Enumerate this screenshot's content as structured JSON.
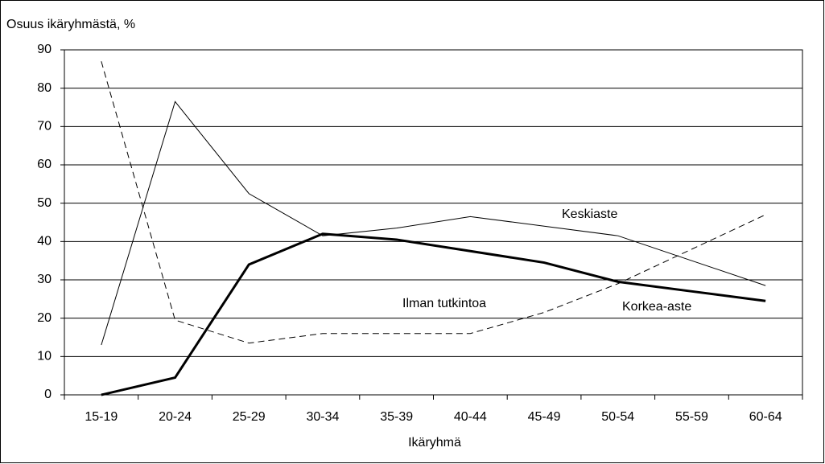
{
  "chart_data": {
    "type": "line",
    "y_axis_label": "Osuus ikäryhmästä, %",
    "x_axis_label": "Ikäryhmä",
    "categories": [
      "15-19",
      "20-24",
      "25-29",
      "30-34",
      "35-39",
      "40-44",
      "45-49",
      "50-54",
      "55-59",
      "60-64"
    ],
    "series": [
      {
        "name": "Keskiaste",
        "color": "#000000",
        "width": 1,
        "dashed": false,
        "values": [
          13,
          76.5,
          52.5,
          41.5,
          43.5,
          46.5,
          44,
          41.5,
          35,
          28.5
        ]
      },
      {
        "name": "Ilman tutkintoa",
        "color": "#000000",
        "width": 1,
        "dashed": true,
        "values": [
          87,
          19.5,
          13.5,
          16,
          16,
          16,
          21.5,
          29,
          38,
          47
        ]
      },
      {
        "name": "Korkea-aste",
        "color": "#000000",
        "width": 3,
        "dashed": false,
        "values": [
          0,
          4.5,
          34,
          42,
          40.5,
          37.5,
          34.5,
          29.5,
          27,
          24.5
        ]
      }
    ],
    "ylim": [
      0,
      90
    ],
    "yticks": [
      0,
      10,
      20,
      30,
      40,
      50,
      60,
      70,
      80,
      90
    ],
    "grid": true
  }
}
